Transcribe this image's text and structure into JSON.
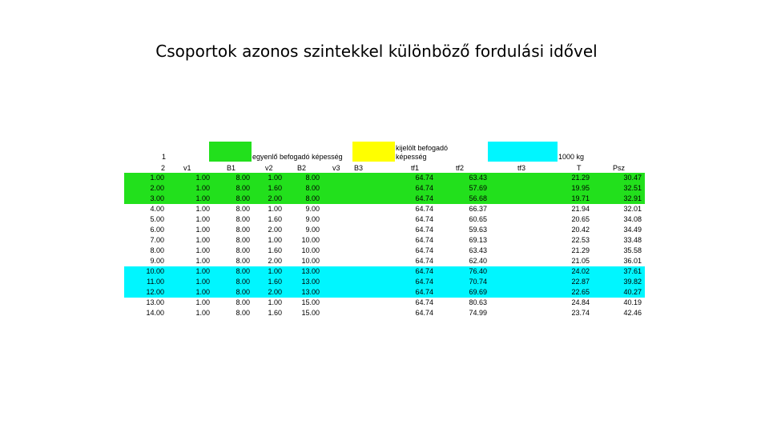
{
  "slide": {
    "title": "Csoportok azonos szintekkel  különböző fordulási idővel"
  },
  "colors": {
    "green": "#22e01c",
    "yellow": "#ffff00",
    "cyan": "#00f6ff"
  },
  "header": {
    "row1_num": "1",
    "equal_capacity": "egyenlő befogadó képesség",
    "assigned_capacity_line1": "kijelölt befogadó",
    "assigned_capacity_line2": "képesség",
    "unit": "1000 kg",
    "row2_num": "2",
    "cols": [
      "v1",
      "B1",
      "v2",
      "B2",
      "v3",
      "B3",
      "tf1",
      "tf2",
      "tf3",
      "T",
      "Psz"
    ]
  },
  "table": {
    "rows": [
      {
        "n": "1.00",
        "v1": "1.00",
        "b1": "8.00",
        "v2": "1.00",
        "b2": "8.00",
        "tf1": "64.74",
        "tf2": "63.43",
        "t": "21.29",
        "psz": "30.47",
        "hl": "green"
      },
      {
        "n": "2.00",
        "v1": "1.00",
        "b1": "8.00",
        "v2": "1.60",
        "b2": "8.00",
        "tf1": "64.74",
        "tf2": "57.69",
        "t": "19.95",
        "psz": "32.51",
        "hl": "green"
      },
      {
        "n": "3.00",
        "v1": "1.00",
        "b1": "8.00",
        "v2": "2.00",
        "b2": "8.00",
        "tf1": "64.74",
        "tf2": "56.68",
        "t": "19.71",
        "psz": "32.91",
        "hl": "green"
      },
      {
        "n": "4.00",
        "v1": "1.00",
        "b1": "8.00",
        "v2": "1.00",
        "b2": "9.00",
        "tf1": "64.74",
        "tf2": "66.37",
        "t": "21.94",
        "psz": "32.01",
        "hl": ""
      },
      {
        "n": "5.00",
        "v1": "1.00",
        "b1": "8.00",
        "v2": "1.60",
        "b2": "9.00",
        "tf1": "64.74",
        "tf2": "60.65",
        "t": "20.65",
        "psz": "34.08",
        "hl": ""
      },
      {
        "n": "6.00",
        "v1": "1.00",
        "b1": "8.00",
        "v2": "2.00",
        "b2": "9.00",
        "tf1": "64.74",
        "tf2": "59.63",
        "t": "20.42",
        "psz": "34.49",
        "hl": ""
      },
      {
        "n": "7.00",
        "v1": "1.00",
        "b1": "8.00",
        "v2": "1.00",
        "b2": "10.00",
        "tf1": "64.74",
        "tf2": "69.13",
        "t": "22.53",
        "psz": "33.48",
        "hl": ""
      },
      {
        "n": "8.00",
        "v1": "1.00",
        "b1": "8.00",
        "v2": "1.60",
        "b2": "10.00",
        "tf1": "64.74",
        "tf2": "63.43",
        "t": "21.29",
        "psz": "35.58",
        "hl": ""
      },
      {
        "n": "9.00",
        "v1": "1.00",
        "b1": "8.00",
        "v2": "2.00",
        "b2": "10.00",
        "tf1": "64.74",
        "tf2": "62.40",
        "t": "21.05",
        "psz": "36.01",
        "hl": ""
      },
      {
        "n": "10.00",
        "v1": "1.00",
        "b1": "8.00",
        "v2": "1.00",
        "b2": "13.00",
        "tf1": "64.74",
        "tf2": "76.40",
        "t": "24.02",
        "psz": "37.61",
        "hl": "cyan"
      },
      {
        "n": "11.00",
        "v1": "1.00",
        "b1": "8.00",
        "v2": "1.60",
        "b2": "13.00",
        "tf1": "64.74",
        "tf2": "70.74",
        "t": "22.87",
        "psz": "39.82",
        "hl": "cyan"
      },
      {
        "n": "12.00",
        "v1": "1.00",
        "b1": "8.00",
        "v2": "2.00",
        "b2": "13.00",
        "tf1": "64.74",
        "tf2": "69.69",
        "t": "22.65",
        "psz": "40.27",
        "hl": "cyan"
      },
      {
        "n": "13.00",
        "v1": "1.00",
        "b1": "8.00",
        "v2": "1.00",
        "b2": "15.00",
        "tf1": "64.74",
        "tf2": "80.63",
        "t": "24.84",
        "psz": "40.19",
        "hl": ""
      },
      {
        "n": "14.00",
        "v1": "1.00",
        "b1": "8.00",
        "v2": "1.60",
        "b2": "15.00",
        "tf1": "64.74",
        "tf2": "74.99",
        "t": "23.74",
        "psz": "42.46",
        "hl": ""
      }
    ]
  }
}
